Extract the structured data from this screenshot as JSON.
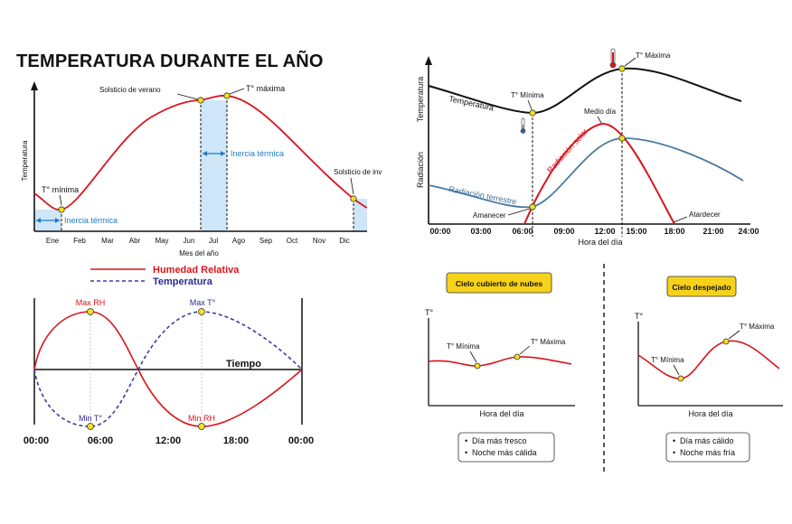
{
  "colors": {
    "red": "#d9141c",
    "blue": "#1f7bc4",
    "navy": "#3a3aa0",
    "inertia_fill": "#cfe6f8",
    "yellow": "#f4e21a",
    "steel": "#4a7aa0"
  },
  "annual": {
    "title": "TEMPERATURA DURANTE EL AÑO",
    "ylabel": "Temperatura",
    "xlabel": "Mes del año",
    "months": [
      "Ene",
      "Feb",
      "Mar",
      "Abr",
      "May",
      "Jun",
      "Jul",
      "Ago",
      "Sep",
      "Oct",
      "Nov",
      "Dic"
    ],
    "label_min": "T° mínima",
    "label_max": "T° máxima",
    "label_summer": "Solsticio de verano",
    "label_winter": "Solsticio de inv",
    "inertia": "Inercia térmica"
  },
  "daily": {
    "ylabel_top": "Temperatura",
    "ylabel_bottom": "Radiación",
    "xlabel": "Hora del día",
    "ticks": [
      "00:00",
      "03:00",
      "06:00",
      "09:00",
      "12:00",
      "15:00",
      "18:00",
      "21:00",
      "24:00"
    ],
    "curve_temp": "Temperatura",
    "curve_solar": "Radiación solar",
    "curve_earth": "Radiación terrestre",
    "label_min": "T° Mínima",
    "label_max": "T° Máxima",
    "label_noon": "Medio día",
    "label_sunrise": "Amanecer",
    "label_sunset": "Atardecer"
  },
  "humidity": {
    "legend_rh": "Humedad Relativa",
    "legend_temp": "Temperatura",
    "axis_label": "Tiempo",
    "max_rh": "Max RH",
    "max_t": "Max T°",
    "min_t": "Min T°",
    "min_rh": "Min RH",
    "ticks": [
      "00:00",
      "06:00",
      "12:00",
      "18:00",
      "00:00"
    ]
  },
  "cloudy": {
    "badge": "Cielo cubierto de nubes",
    "yaxis": "T°",
    "xaxis": "Hora del día",
    "label_min": "T° Mínima",
    "label_max": "T° Máxima",
    "notes": [
      "Día más fresco",
      "Noche más cálida"
    ]
  },
  "clear": {
    "badge": "Cielo despejado",
    "yaxis": "T°",
    "xaxis": "Hora del día",
    "label_min": "T° Mínima",
    "label_max": "T° Máxima",
    "notes": [
      "Día más cálido",
      "Noche más fría"
    ]
  }
}
